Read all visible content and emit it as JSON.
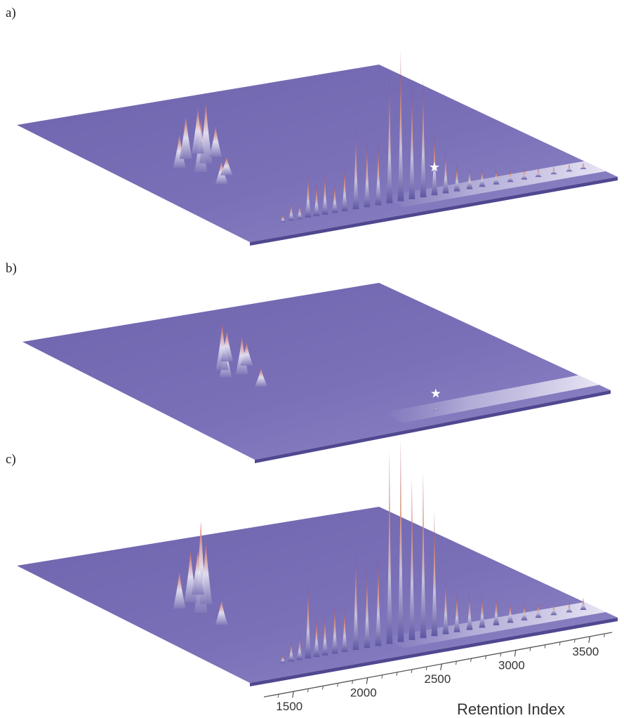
{
  "chart_data": [
    {
      "type": "surface",
      "panel_label": "a)",
      "star_marker": "★",
      "star_peak_index": 15,
      "peaks": [
        {
          "ri": 1420,
          "h": 0.05
        },
        {
          "ri": 1480,
          "h": 0.12
        },
        {
          "ri": 1540,
          "h": 0.1
        },
        {
          "ri": 1600,
          "h": 0.3
        },
        {
          "ri": 1660,
          "h": 0.22
        },
        {
          "ri": 1720,
          "h": 0.28
        },
        {
          "ri": 1790,
          "h": 0.2
        },
        {
          "ri": 1860,
          "h": 0.3
        },
        {
          "ri": 1940,
          "h": 0.55
        },
        {
          "ri": 2020,
          "h": 0.45
        },
        {
          "ri": 2100,
          "h": 0.42
        },
        {
          "ri": 2180,
          "h": 0.88
        },
        {
          "ri": 2260,
          "h": 1.0
        },
        {
          "ri": 2340,
          "h": 0.78
        },
        {
          "ri": 2420,
          "h": 0.8
        },
        {
          "ri": 2500,
          "h": 0.42
        },
        {
          "ri": 2580,
          "h": 0.28
        },
        {
          "ri": 2660,
          "h": 0.18
        },
        {
          "ri": 2750,
          "h": 0.14
        },
        {
          "ri": 2840,
          "h": 0.12
        },
        {
          "ri": 2940,
          "h": 0.1
        },
        {
          "ri": 3040,
          "h": 0.08
        },
        {
          "ri": 3140,
          "h": 0.07
        },
        {
          "ri": 3240,
          "h": 0.06
        },
        {
          "ri": 3350,
          "h": 0.05
        },
        {
          "ri": 3460,
          "h": 0.05
        },
        {
          "ri": 3560,
          "h": 0.04
        }
      ],
      "cluster": [
        {
          "ri": 1450,
          "d": 0.55,
          "h": 0.22
        },
        {
          "ri": 1520,
          "d": 0.5,
          "h": 0.35
        },
        {
          "ri": 1580,
          "d": 0.6,
          "h": 0.28
        },
        {
          "ri": 1640,
          "d": 0.55,
          "h": 0.4
        },
        {
          "ri": 1700,
          "d": 0.62,
          "h": 0.3
        },
        {
          "ri": 1760,
          "d": 0.58,
          "h": 0.2
        },
        {
          "ri": 1500,
          "d": 0.4,
          "h": 0.15
        },
        {
          "ri": 1620,
          "d": 0.45,
          "h": 0.12
        }
      ]
    },
    {
      "type": "surface",
      "panel_label": "b)",
      "star_marker": "★",
      "star_peak_index": 0,
      "peaks": [
        {
          "ri": 2520,
          "h": 0.02
        }
      ],
      "cluster": [
        {
          "ri": 1760,
          "d": 0.55,
          "h": 0.22
        },
        {
          "ri": 1820,
          "d": 0.6,
          "h": 0.3
        },
        {
          "ri": 1880,
          "d": 0.55,
          "h": 0.25
        },
        {
          "ri": 1940,
          "d": 0.65,
          "h": 0.2
        },
        {
          "ri": 2000,
          "d": 0.6,
          "h": 0.15
        },
        {
          "ri": 1850,
          "d": 0.45,
          "h": 0.12
        }
      ]
    },
    {
      "type": "surface",
      "panel_label": "c)",
      "xlabel": "Retention Index",
      "xticks": [
        1500,
        2000,
        2500,
        3000,
        3500
      ],
      "peaks": [
        {
          "ri": 1420,
          "h": 0.04
        },
        {
          "ri": 1480,
          "h": 0.1
        },
        {
          "ri": 1540,
          "h": 0.12
        },
        {
          "ri": 1600,
          "h": 0.38
        },
        {
          "ri": 1660,
          "h": 0.2
        },
        {
          "ri": 1720,
          "h": 0.2
        },
        {
          "ri": 1790,
          "h": 0.25
        },
        {
          "ri": 1860,
          "h": 0.22
        },
        {
          "ri": 1940,
          "h": 0.5
        },
        {
          "ri": 2020,
          "h": 0.4
        },
        {
          "ri": 2100,
          "h": 0.45
        },
        {
          "ri": 2180,
          "h": 0.95
        },
        {
          "ri": 2260,
          "h": 1.0
        },
        {
          "ri": 2340,
          "h": 0.8
        },
        {
          "ri": 2420,
          "h": 0.82
        },
        {
          "ri": 2500,
          "h": 0.62
        },
        {
          "ri": 2580,
          "h": 0.28
        },
        {
          "ri": 2660,
          "h": 0.2
        },
        {
          "ri": 2750,
          "h": 0.18
        },
        {
          "ri": 2840,
          "h": 0.16
        },
        {
          "ri": 2940,
          "h": 0.14
        },
        {
          "ri": 3040,
          "h": 0.1
        },
        {
          "ri": 3140,
          "h": 0.08
        },
        {
          "ri": 3240,
          "h": 0.07
        },
        {
          "ri": 3350,
          "h": 0.06
        },
        {
          "ri": 3460,
          "h": 0.05
        },
        {
          "ri": 3560,
          "h": 0.06
        }
      ],
      "cluster": [
        {
          "ri": 1450,
          "d": 0.55,
          "h": 0.18
        },
        {
          "ri": 1520,
          "d": 0.5,
          "h": 0.45
        },
        {
          "ri": 1580,
          "d": 0.58,
          "h": 0.25
        },
        {
          "ri": 1640,
          "d": 0.55,
          "h": 0.3
        },
        {
          "ri": 1700,
          "d": 0.62,
          "h": 0.22
        },
        {
          "ri": 1500,
          "d": 0.4,
          "h": 0.12
        }
      ]
    }
  ]
}
